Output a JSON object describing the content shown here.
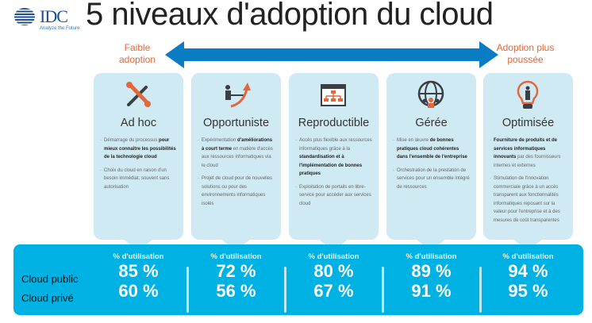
{
  "logo": {
    "name": "IDC",
    "tagline": "Analyze the Future"
  },
  "title": "5 niveaux d'adoption du cloud",
  "scale": {
    "left": "Faible adoption",
    "right": "Adoption plus poussée",
    "color": "#0a7cc4"
  },
  "colors": {
    "card": "#d0eaf3",
    "band": "#00b2e3",
    "accent": "#e2683c"
  },
  "levels": [
    {
      "name": "Ad hoc",
      "icon": "tools-icon",
      "bullets": [
        {
          "pre": "Démarrage du processus ",
          "bold": "pour mieux connaître les possibilités de la technologie cloud",
          "post": ""
        },
        {
          "pre": "Choix du cloud en raison d'un besoin immédiat, souvent sans autorisation",
          "bold": "",
          "post": ""
        }
      ],
      "usage_label": "% d'utilisation",
      "public": "85 %",
      "private": "60 %"
    },
    {
      "name": "Opportuniste",
      "icon": "growth-arrow-icon",
      "bullets": [
        {
          "pre": "Expérimentation ",
          "bold": "d'améliorations à court terme",
          "post": " en matière d'accès aux ressources informatiques via le cloud"
        },
        {
          "pre": "Projet de cloud pour de nouvelles solutions ou pour des environnements informatiques isolés",
          "bold": "",
          "post": ""
        }
      ],
      "usage_label": "% d'utilisation",
      "public": "72 %",
      "private": "56 %"
    },
    {
      "name": "Reproductible",
      "icon": "org-chart-window-icon",
      "bullets": [
        {
          "pre": "Accès plus flexible aux ressources informatiques grâce à la ",
          "bold": "standardisation et à l'implémentation de bonnes pratiques",
          "post": ""
        },
        {
          "pre": "Exploitation de portails en libre-service pour accéder aux services cloud",
          "bold": "",
          "post": ""
        }
      ],
      "usage_label": "% d'utilisation",
      "public": "80 %",
      "private": "67 %"
    },
    {
      "name": "Gérée",
      "icon": "network-people-icon",
      "bullets": [
        {
          "pre": "Mise en œuvre ",
          "bold": "de bonnes pratiques cloud cohérentes dans l'ensemble de l'entreprise",
          "post": ""
        },
        {
          "pre": "Orchestration de la prestation de services pour un ensemble intégré de ressources",
          "bold": "",
          "post": ""
        }
      ],
      "usage_label": "% d'utilisation",
      "public": "89 %",
      "private": "91 %"
    },
    {
      "name": "Optimisée",
      "icon": "lightbulb-person-icon",
      "bullets": [
        {
          "pre": "",
          "bold": "Fourniture de produits et de services informatiques innovants",
          "post": " par des fournisseurs internes et externes"
        },
        {
          "pre": "Stimulation de l'innovation commerciale grâce à un accès transparent aux fonctionnalités informatiques reposant sur la valeur pour l'entreprise et à des mesures de coût transparentes",
          "bold": "",
          "post": ""
        }
      ],
      "usage_label": "% d'utilisation",
      "public": "94 %",
      "private": "95 %"
    }
  ],
  "rows": {
    "public": "Cloud public",
    "private": "Cloud privé"
  }
}
